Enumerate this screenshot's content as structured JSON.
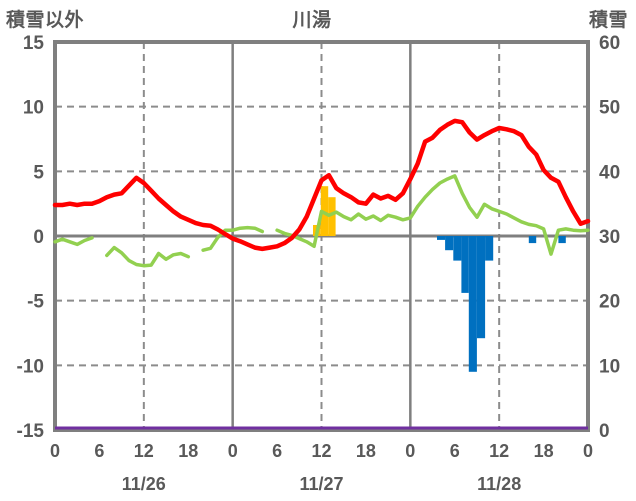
{
  "colors": {
    "red": "#ff0000",
    "green": "#92d050",
    "orange": "#ffc000",
    "blue": "#0070c0",
    "purple": "#7030a0",
    "grid": "#7f7f7f",
    "grid_dashed": "#8c8c8c",
    "text": "#595959",
    "background": "#ffffff"
  },
  "chart_data": {
    "type": "line+bar combo (time series)",
    "title": "川湯",
    "legend_position": "none",
    "left_axis": {
      "label": "積雪以外",
      "min": -15,
      "max": 15,
      "ticks": [
        15,
        10,
        5,
        0,
        -5,
        -10,
        -15
      ]
    },
    "right_axis": {
      "label": "積雪",
      "min": 0,
      "max": 60,
      "ticks": [
        60,
        50,
        40,
        30,
        20,
        10,
        0
      ]
    },
    "x_axis": {
      "hours_total": 72,
      "tick_hours": [
        0,
        6,
        12,
        18,
        24,
        30,
        36,
        42,
        48,
        54,
        60,
        66,
        72
      ],
      "tick_labels": [
        "0",
        "6",
        "12",
        "18",
        "0",
        "6",
        "12",
        "18",
        "0",
        "6",
        "12",
        "18",
        "0"
      ],
      "day_labels": [
        {
          "hour": 12,
          "label": "11/26"
        },
        {
          "hour": 36,
          "label": "11/27"
        },
        {
          "hour": 60,
          "label": "11/28"
        }
      ],
      "solid_gridline_hours": [
        24,
        48
      ],
      "dashed_gridline_hours": [
        12,
        36,
        60
      ]
    },
    "dashed_gridline_values": [
      10,
      5,
      -5,
      -10
    ],
    "zero_line_value": 0,
    "series": {
      "red_line": {
        "name": "red-line",
        "axis": "left",
        "color_key": "red",
        "hourly_values": [
          2.4,
          2.4,
          2.5,
          2.4,
          2.5,
          2.5,
          2.7,
          3.0,
          3.2,
          3.3,
          3.9,
          4.5,
          4.1,
          3.5,
          2.9,
          2.4,
          1.9,
          1.5,
          1.25,
          1.0,
          0.85,
          0.8,
          0.5,
          0.15,
          -0.2,
          -0.4,
          -0.65,
          -0.9,
          -1.0,
          -0.9,
          -0.8,
          -0.55,
          -0.15,
          0.5,
          1.5,
          2.9,
          4.3,
          4.7,
          3.7,
          3.3,
          3.0,
          2.6,
          2.5,
          3.2,
          2.9,
          3.1,
          2.8,
          3.3,
          4.4,
          5.6,
          7.3,
          7.6,
          8.2,
          8.6,
          8.9,
          8.8,
          8.0,
          7.45,
          7.8,
          8.1,
          8.35,
          8.25,
          8.1,
          7.8,
          6.9,
          6.3,
          5.1,
          4.5,
          4.2,
          3.0,
          1.9,
          0.95,
          1.15
        ]
      },
      "green_line": {
        "name": "green-line",
        "axis": "left",
        "color_key": "green",
        "hourly_values": [
          -0.45,
          -0.25,
          -0.45,
          -0.65,
          -0.35,
          -0.15,
          null,
          -1.5,
          -0.9,
          -1.3,
          -1.9,
          -2.2,
          -2.3,
          -2.25,
          -1.35,
          -1.8,
          -1.45,
          -1.35,
          -1.6,
          null,
          -1.1,
          -0.95,
          -0.1,
          0.45,
          0.45,
          0.6,
          0.65,
          0.6,
          0.35,
          null,
          0.45,
          0.2,
          0.05,
          -0.2,
          -0.45,
          -0.8,
          1.9,
          1.6,
          1.85,
          1.5,
          1.25,
          1.7,
          1.3,
          1.55,
          1.2,
          1.6,
          1.45,
          1.25,
          1.4,
          2.3,
          3.0,
          3.6,
          4.1,
          4.4,
          4.65,
          3.3,
          2.2,
          1.45,
          2.45,
          2.1,
          1.9,
          1.7,
          1.4,
          1.1,
          0.9,
          0.8,
          0.55,
          -1.4,
          0.45,
          0.55,
          0.45,
          0.4,
          0.45
        ]
      },
      "orange_bars": {
        "name": "orange-bars",
        "axis": "left",
        "color_key": "orange",
        "bars": [
          {
            "from_hour": 34.85,
            "to_hour": 35.9,
            "value": 0.85
          },
          {
            "from_hour": 35.9,
            "to_hour": 36.9,
            "value": 3.85
          },
          {
            "from_hour": 36.9,
            "to_hour": 37.9,
            "value": 3.0
          }
        ]
      },
      "blue_bars": {
        "name": "blue-bars",
        "axis": "left",
        "color_key": "blue",
        "bars": [
          {
            "from_hour": 51.6,
            "to_hour": 52.7,
            "value": -0.3
          },
          {
            "from_hour": 52.7,
            "to_hour": 53.8,
            "value": -1.1
          },
          {
            "from_hour": 53.8,
            "to_hour": 54.9,
            "value": -1.9
          },
          {
            "from_hour": 54.9,
            "to_hour": 55.9,
            "value": -4.4
          },
          {
            "from_hour": 55.9,
            "to_hour": 57.0,
            "value": -10.5
          },
          {
            "from_hour": 57.0,
            "to_hour": 58.1,
            "value": -7.9
          },
          {
            "from_hour": 58.1,
            "to_hour": 59.2,
            "value": -1.9
          },
          {
            "from_hour": 64.0,
            "to_hour": 65.0,
            "value": -0.55
          },
          {
            "from_hour": 68.0,
            "to_hour": 69.0,
            "value": -0.55
          }
        ]
      },
      "purple_line": {
        "name": "purple-line",
        "axis": "right",
        "color_key": "purple",
        "constant_value": 0
      }
    }
  }
}
